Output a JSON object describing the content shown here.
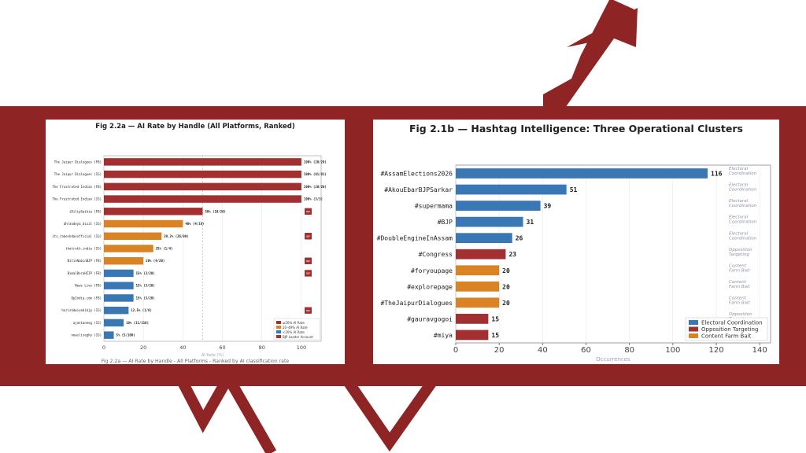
{
  "colors": {
    "brand_red": "#8e2424",
    "bar_red": "#a33030",
    "bar_orange": "#d98324",
    "bar_blue": "#3a78b5",
    "panel_bg": "#ffffff"
  },
  "left_panel": {
    "caption": "Fig 2.2a — AI Rate by Handle - All Platforms - Ranked by AI classification rate"
  },
  "right_panel": {},
  "chart_data": [
    {
      "type": "bar",
      "orientation": "horizontal",
      "title": "Fig 2.2a — AI Rate by Handle (All Platforms, Ranked)",
      "subtitle": "",
      "xlabel": "AI Rate (%)",
      "ylabel": "",
      "xlim": [
        0,
        110
      ],
      "xticks": [
        0,
        20,
        40,
        60,
        80,
        100
      ],
      "grid": "vertical",
      "reference_line": 50,
      "legend_position": "bottom-right",
      "legend": [
        {
          "label": "≥50% AI Rate",
          "color": "#a33030"
        },
        {
          "label": "20–49% AI Rate",
          "color": "#d98324"
        },
        {
          "label": "<20% AI Rate",
          "color": "#3a78b5"
        },
        {
          "label": "BJP Leader Account",
          "color": "#a33030"
        }
      ],
      "bars": [
        {
          "label": "The Jaipur Dialogues (FB)",
          "value": 100,
          "text": "100% (20/20)",
          "color": "#a33030",
          "bjp": false
        },
        {
          "label": "The Jaipur Dialogues (IG)",
          "value": 100,
          "text": "100% (81/81)",
          "color": "#a33030",
          "bjp": false
        },
        {
          "label": "The Frustrated Indian (FB)",
          "value": 100,
          "text": "100% (20/20)",
          "color": "#a33030",
          "bjp": false
        },
        {
          "label": "The Frustrated Indian (IG)",
          "value": 100,
          "text": "100% (3/3)",
          "color": "#a33030",
          "bjp": false
        },
        {
          "label": "iDilipSaikia (FB)",
          "value": 50,
          "text": "50% (10/20)",
          "color": "#a33030",
          "bjp": true
        },
        {
          "label": "dhrandeya_dixit (IG)",
          "value": 40,
          "text": "40% (4/10)",
          "color": "#d98324",
          "bjp": false
        },
        {
          "label": "its_rakeshdasofficial (IG)",
          "value": 29.2,
          "text": "29.2% (26/89)",
          "color": "#d98324",
          "bjp": true
        },
        {
          "label": "thetruth.india (IG)",
          "value": 25,
          "text": "25% (1/4)",
          "color": "#d98324",
          "bjp": false
        },
        {
          "label": "NitinNabinBJP (FB)",
          "value": 20,
          "text": "20% (4/20)",
          "color": "#d98324",
          "bjp": true
        },
        {
          "label": "BimalBoraHIIP (FB)",
          "value": 15,
          "text": "15% (3/20)",
          "color": "#3a78b5",
          "bjp": true
        },
        {
          "label": "News Live (FB)",
          "value": 15,
          "text": "15% (3/20)",
          "color": "#3a78b5",
          "bjp": false
        },
        {
          "label": "OpIndia.com (FB)",
          "value": 15,
          "text": "15% (3/20)",
          "color": "#3a78b5",
          "bjp": false
        },
        {
          "label": "harishdwivedibjp (IG)",
          "value": 12.5,
          "text": "12.5% (1/8)",
          "color": "#3a78b5",
          "bjp": true
        },
        {
          "label": "ajantaneog (IG)",
          "value": 10,
          "text": "10% (11/110)",
          "color": "#3a78b5",
          "bjp": true
        },
        {
          "label": "newsliveghy (IG)",
          "value": 5,
          "text": "5% (5/100)",
          "color": "#3a78b5",
          "bjp": false
        }
      ],
      "bjp_badge_text": "BJP"
    },
    {
      "type": "bar",
      "orientation": "horizontal",
      "title": "Fig 2.1b — Hashtag Intelligence: Three Operational Clusters",
      "subtitle": "",
      "xlabel": "Occurrences",
      "ylabel": "",
      "xlim": [
        0,
        145
      ],
      "xticks": [
        0,
        20,
        40,
        60,
        80,
        100,
        120,
        140
      ],
      "grid": "vertical",
      "legend_position": "bottom-right",
      "legend": [
        {
          "label": "Electoral Coordination",
          "color": "#3a78b5"
        },
        {
          "label": "Opposition Targeting",
          "color": "#a33030"
        },
        {
          "label": "Content Farm Bait",
          "color": "#d98324"
        }
      ],
      "bars": [
        {
          "label": "#AssamElections2026",
          "value": 116,
          "cluster": "Electoral Coordination",
          "color": "#3a78b5"
        },
        {
          "label": "#AkouEbarBJPSarkar",
          "value": 51,
          "cluster": "Electoral Coordination",
          "color": "#3a78b5"
        },
        {
          "label": "#supermama",
          "value": 39,
          "cluster": "Electoral Coordination",
          "color": "#3a78b5"
        },
        {
          "label": "#BJP",
          "value": 31,
          "cluster": "Electoral Coordination",
          "color": "#3a78b5"
        },
        {
          "label": "#DoubleEngineInAssam",
          "value": 26,
          "cluster": "Electoral Coordination",
          "color": "#3a78b5"
        },
        {
          "label": "#Congress",
          "value": 23,
          "cluster": "Opposition Targeting",
          "color": "#a33030"
        },
        {
          "label": "#foryoupage",
          "value": 20,
          "cluster": "Content Farm Bait",
          "color": "#d98324"
        },
        {
          "label": "#explorepage",
          "value": 20,
          "cluster": "Content Farm Bait",
          "color": "#d98324"
        },
        {
          "label": "#TheJaipurDialogues",
          "value": 20,
          "cluster": "Content Farm Bait",
          "color": "#d98324"
        },
        {
          "label": "#gauravgogoi",
          "value": 15,
          "cluster": "Opposition Targeting",
          "color": "#a33030"
        },
        {
          "label": "#miya",
          "value": 15,
          "cluster": "Opposition Targeting",
          "color": "#a33030"
        }
      ]
    }
  ]
}
